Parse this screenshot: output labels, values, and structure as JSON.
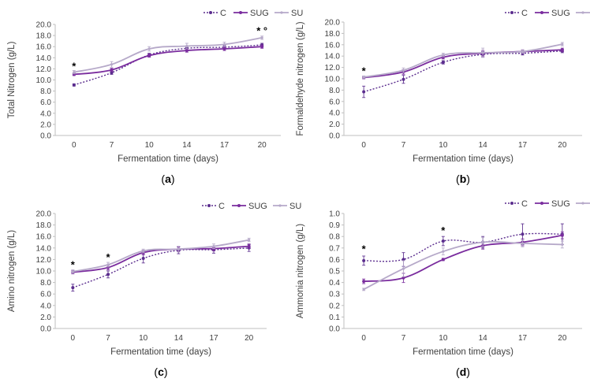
{
  "colors": {
    "C": "#5b2d8e",
    "SUG": "#7a2c9e",
    "SU": "#b6a9c9",
    "axis": "#bfbfbf",
    "text": "#404040"
  },
  "chart_data": [
    {
      "id": "a",
      "type": "line",
      "panel_label": "(a)",
      "title": "",
      "xlabel": "Fermentation time (days)",
      "ylabel": "Total Nitrogen (g/L)",
      "categories": [
        "0",
        "7",
        "10",
        "14",
        "17",
        "20"
      ],
      "ylim": [
        0,
        20
      ],
      "ystep": 2,
      "ytick_labels": [
        "0.0",
        "2.0",
        "4.0",
        "6.0",
        "8.0",
        "10.0",
        "12.0",
        "14.0",
        "16.0",
        "18.0",
        "20.0"
      ],
      "legend": "top-right",
      "series": [
        {
          "name": "C",
          "values": [
            9.1,
            11.3,
            14.5,
            15.7,
            15.9,
            16.3
          ],
          "errors": [
            0.2,
            0.3,
            0.3,
            0.3,
            0.3,
            0.3
          ]
        },
        {
          "name": "SUG",
          "values": [
            11.0,
            11.8,
            14.4,
            15.3,
            15.6,
            16.0
          ],
          "errors": [
            0.2,
            0.3,
            0.3,
            0.3,
            0.3,
            0.3
          ]
        },
        {
          "name": "SU",
          "values": [
            11.4,
            12.8,
            15.6,
            16.1,
            16.4,
            17.6
          ],
          "errors": [
            0.3,
            0.5,
            0.4,
            0.5,
            0.4,
            0.3
          ]
        }
      ],
      "annotations": [
        {
          "x": "0",
          "y": 12.4,
          "text": "*"
        },
        {
          "x": "20",
          "y": 18.8,
          "text": "* °"
        }
      ]
    },
    {
      "id": "b",
      "type": "line",
      "panel_label": "(b)",
      "title": "",
      "xlabel": "Fermentation time (days)",
      "ylabel": "Formaldehyde nitrogen (g/L)",
      "categories": [
        "0",
        "7",
        "10",
        "14",
        "17",
        "20"
      ],
      "ylim": [
        0,
        20
      ],
      "ystep": 2,
      "ytick_labels": [
        "0.0",
        "2.0",
        "4.0",
        "6.0",
        "8.0",
        "10.0",
        "12.0",
        "14.0",
        "16.0",
        "18.0",
        "20.0"
      ],
      "legend": "top-right",
      "series": [
        {
          "name": "C",
          "values": [
            7.7,
            9.9,
            12.9,
            14.3,
            14.5,
            14.9
          ],
          "errors": [
            1.0,
            0.7,
            0.3,
            0.5,
            0.3,
            0.3
          ]
        },
        {
          "name": "SUG",
          "values": [
            10.2,
            11.2,
            13.8,
            14.5,
            14.8,
            15.1
          ],
          "errors": [
            0.2,
            0.4,
            0.3,
            0.5,
            0.3,
            0.3
          ]
        },
        {
          "name": "SU",
          "values": [
            10.3,
            11.5,
            14.2,
            14.6,
            14.8,
            16.1
          ],
          "errors": [
            0.2,
            0.4,
            0.3,
            0.8,
            0.3,
            0.3
          ]
        }
      ],
      "annotations": [
        {
          "x": "0",
          "y": 11.3,
          "text": "*"
        }
      ]
    },
    {
      "id": "c",
      "type": "line",
      "panel_label": "(c)",
      "title": "",
      "xlabel": "Fermentation time (days)",
      "ylabel": "Amino nitrogen (g/L)",
      "categories": [
        "0",
        "7",
        "10",
        "14",
        "17",
        "20"
      ],
      "ylim": [
        0,
        20
      ],
      "ystep": 2,
      "ytick_labels": [
        "0.0",
        "2.0",
        "4.0",
        "6.0",
        "8.0",
        "10.0",
        "12.0",
        "14.0",
        "16.0",
        "18.0",
        "20.0"
      ],
      "legend": "top-right",
      "series": [
        {
          "name": "C",
          "values": [
            7.1,
            9.4,
            12.2,
            13.6,
            13.7,
            14.0
          ],
          "errors": [
            0.6,
            0.6,
            0.8,
            0.6,
            0.6,
            0.6
          ]
        },
        {
          "name": "SUG",
          "values": [
            9.8,
            10.6,
            13.2,
            13.8,
            13.9,
            14.3
          ],
          "errors": [
            0.3,
            0.4,
            0.4,
            0.4,
            0.4,
            0.4
          ]
        },
        {
          "name": "SU",
          "values": [
            9.9,
            11.1,
            13.5,
            13.8,
            14.3,
            15.4
          ],
          "errors": [
            0.3,
            0.4,
            0.3,
            0.5,
            0.4,
            0.3
          ]
        }
      ],
      "annotations": [
        {
          "x": "0",
          "y": 11.0,
          "text": "*"
        },
        {
          "x": "7",
          "y": 12.3,
          "text": "*"
        }
      ]
    },
    {
      "id": "d",
      "type": "line",
      "panel_label": "(d)",
      "title": "",
      "xlabel": "Fermentation time (days)",
      "ylabel": "Ammonia nitrogen (g/L)",
      "categories": [
        "0",
        "7",
        "10",
        "14",
        "17",
        "20"
      ],
      "ylim": [
        0,
        1
      ],
      "ystep": 0.1,
      "ytick_labels": [
        "0.0",
        "0.1",
        "0.2",
        "0.3",
        "0.4",
        "0.5",
        "0.6",
        "0.7",
        "0.8",
        "0.9",
        "1.0"
      ],
      "legend": "top-right",
      "series": [
        {
          "name": "C",
          "values": [
            0.59,
            0.6,
            0.76,
            0.75,
            0.82,
            0.82
          ],
          "errors": [
            0.04,
            0.06,
            0.04,
            0.05,
            0.09,
            0.09
          ]
        },
        {
          "name": "SUG",
          "values": [
            0.41,
            0.44,
            0.6,
            0.72,
            0.75,
            0.81
          ],
          "errors": [
            0.02,
            0.04,
            0.01,
            0.03,
            0.03,
            0.03
          ]
        },
        {
          "name": "SU",
          "values": [
            0.34,
            0.52,
            0.67,
            0.75,
            0.74,
            0.73
          ],
          "errors": [
            0.01,
            0.07,
            0.03,
            0.04,
            0.03,
            0.03
          ]
        }
      ],
      "annotations": [
        {
          "x": "0",
          "y": 0.69,
          "text": "*"
        },
        {
          "x": "10",
          "y": 0.85,
          "text": "*"
        }
      ]
    }
  ]
}
